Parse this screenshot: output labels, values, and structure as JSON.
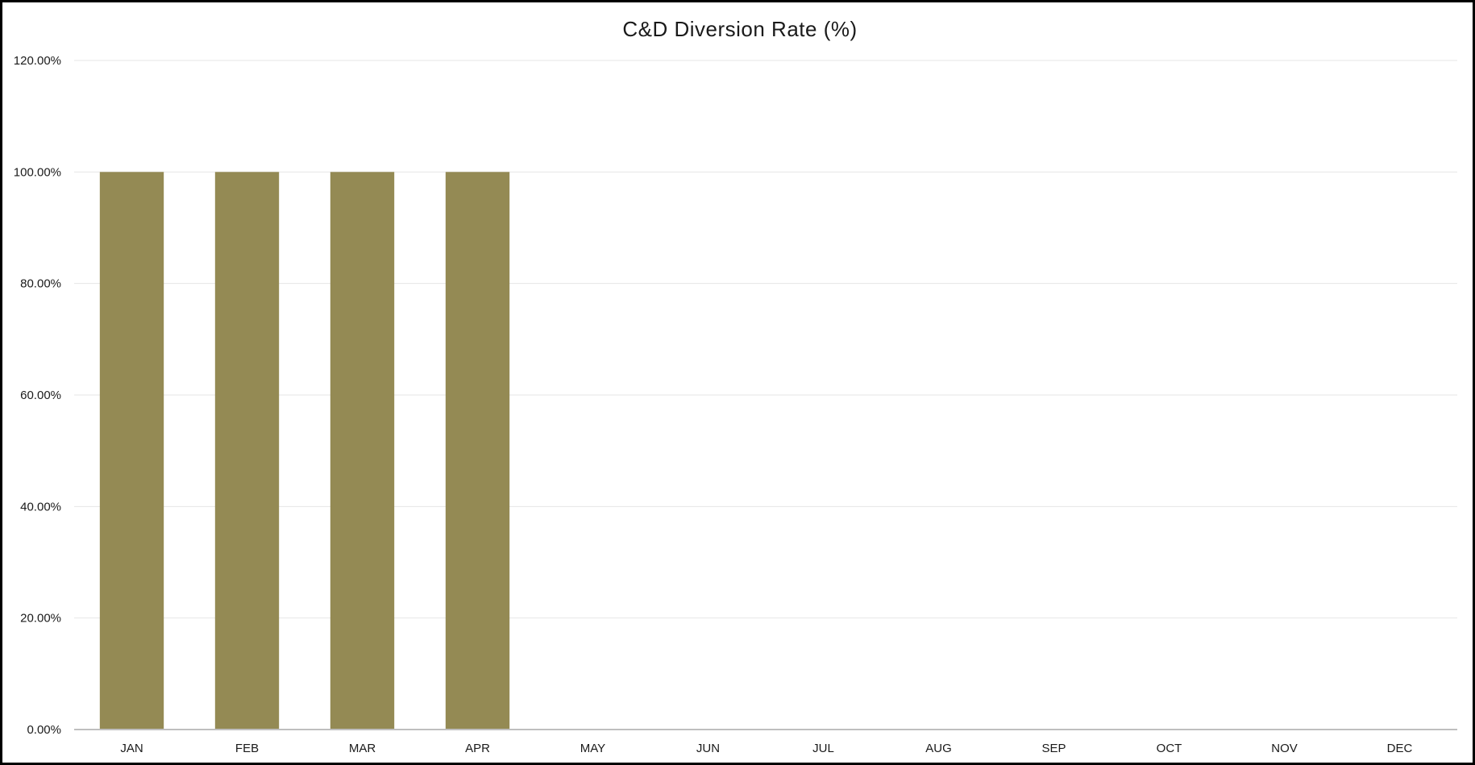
{
  "chart_data": {
    "type": "bar",
    "title": "C&D Diversion Rate (%)",
    "xlabel": "",
    "ylabel": "",
    "categories": [
      "JAN",
      "FEB",
      "MAR",
      "APR",
      "MAY",
      "JUN",
      "JUL",
      "AUG",
      "SEP",
      "OCT",
      "NOV",
      "DEC"
    ],
    "series": [
      {
        "values": [
          100,
          100,
          100,
          100,
          null,
          null,
          null,
          null,
          null,
          null,
          null,
          null
        ],
        "color": "#948A54"
      }
    ],
    "ylim": [
      0,
      120
    ],
    "yticks": [
      0,
      20,
      40,
      60,
      80,
      100,
      120
    ],
    "ytick_labels": [
      "0.00%",
      "20.00%",
      "40.00%",
      "60.00%",
      "80.00%",
      "100.00%",
      "120.00%"
    ],
    "grid": true,
    "legend": "none",
    "colors": {
      "bar": "#948A54",
      "gridline": "#e6e6e6",
      "axis": "#bfbfbf",
      "border": "#000000"
    }
  }
}
